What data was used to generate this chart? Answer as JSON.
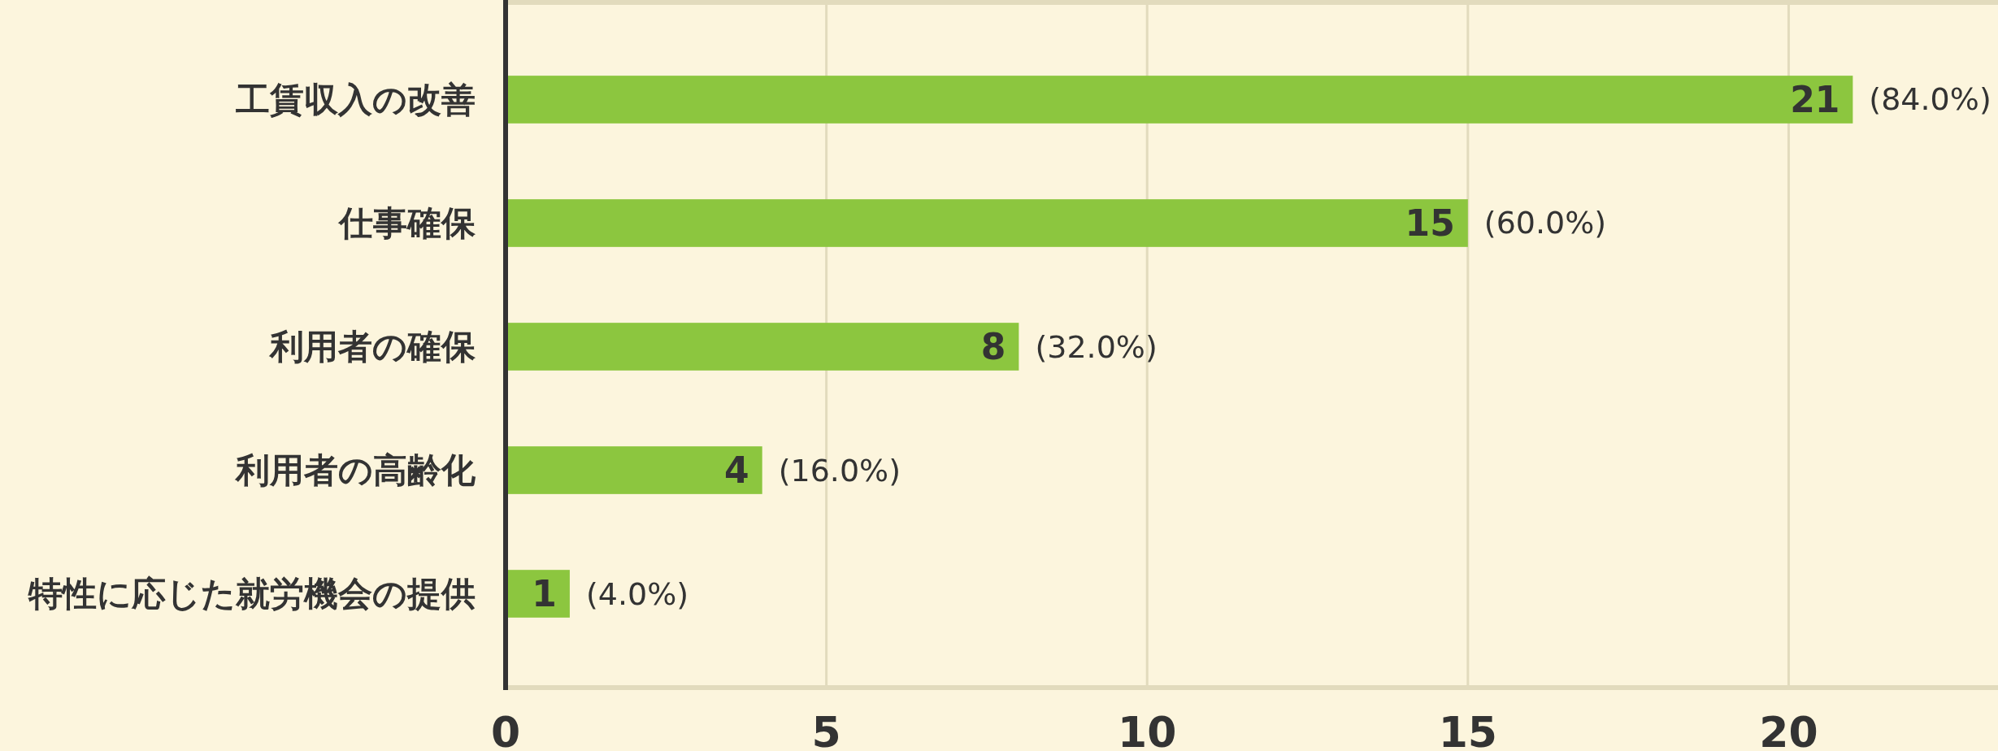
{
  "chart_data": {
    "type": "bar",
    "orientation": "horizontal",
    "categories": [
      "工賃収入の改善",
      "仕事確保",
      "利用者の確保",
      "利用者の高齢化",
      "特性に応じた就労機会の提供"
    ],
    "values": [
      21,
      15,
      8,
      4,
      1
    ],
    "color": "#8cc63f",
    "data_labels": true,
    "xlim": [
      0,
      23.2
    ],
    "xticks": [
      0,
      5,
      10,
      15,
      20
    ],
    "grid": "x",
    "annotations": [
      {
        "text": "(84.0%)",
        "x": 21,
        "y": "工賃収入の改善"
      },
      {
        "text": "(60.0%)",
        "x": 15,
        "y": "仕事確保"
      },
      {
        "text": "(32.0%)",
        "x": 8,
        "y": "利用者の確保"
      },
      {
        "text": "(16.0%)",
        "x": 4,
        "y": "利用者の高齢化"
      },
      {
        "text": "(4.0%)",
        "x": 1,
        "y": "特性に応じた就労機会の提供"
      }
    ]
  }
}
